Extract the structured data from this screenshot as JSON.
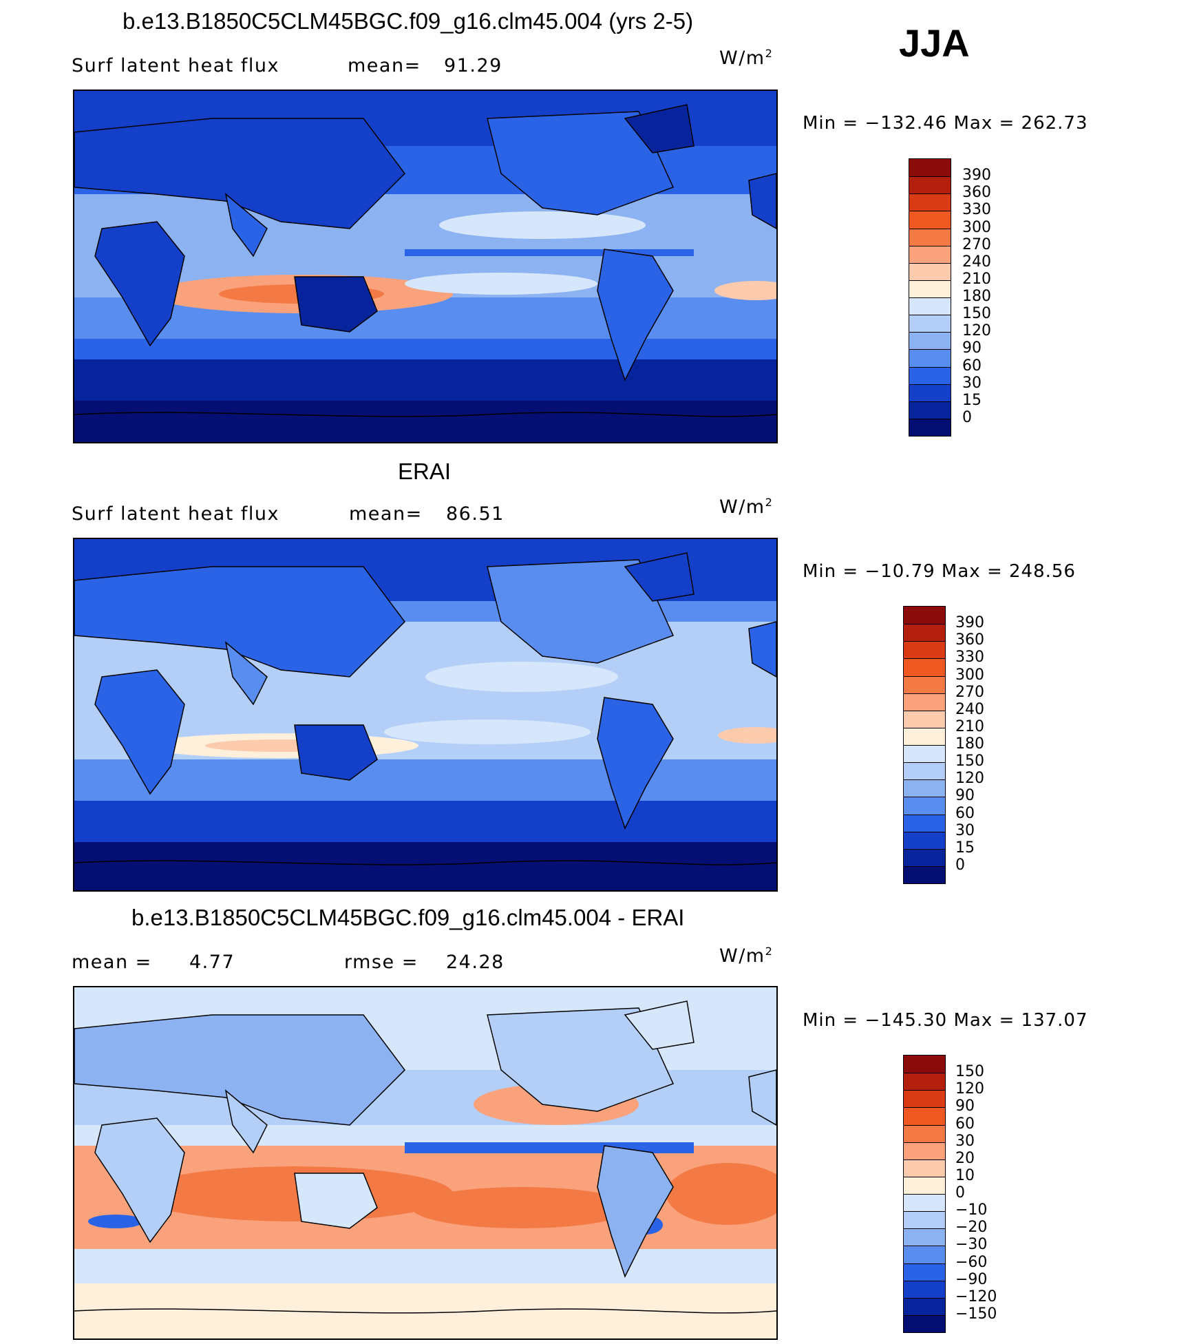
{
  "season": "JJA",
  "units_base": "W/m",
  "units_exp": "2",
  "panels": [
    {
      "id": "model",
      "title": "b.e13.B1850C5CLM45BGC.f09_g16.clm45.004 (yrs 2-5)",
      "left_label": "Surf latent heat flux",
      "stat_label": "mean=",
      "stat_value": "91.29",
      "minmax": "Min = −132.46 Max = 262.73",
      "colorbar": {
        "colors": [
          "#8b0b0b",
          "#b5200e",
          "#d93b14",
          "#f05a22",
          "#f47a45",
          "#f9a27c",
          "#fccbad",
          "#fff0dc",
          "#d6e7fb",
          "#b4cff7",
          "#8db2f1",
          "#5a8df0",
          "#2b63e6",
          "#1440c9",
          "#08249d",
          "#040e73"
        ],
        "labels": [
          "390",
          "360",
          "330",
          "300",
          "270",
          "240",
          "210",
          "180",
          "150",
          "120",
          "90",
          "60",
          "30",
          "15",
          "0"
        ]
      }
    },
    {
      "id": "obs",
      "title": "ERAI",
      "left_label": "Surf latent heat flux",
      "stat_label": "mean=",
      "stat_value": "86.51",
      "minmax": "Min = −10.79 Max = 248.56",
      "colorbar": {
        "colors": [
          "#8b0b0b",
          "#b5200e",
          "#d93b14",
          "#f05a22",
          "#f47a45",
          "#f9a27c",
          "#fccbad",
          "#fff0dc",
          "#d6e7fb",
          "#b4cff7",
          "#8db2f1",
          "#5a8df0",
          "#2b63e6",
          "#1440c9",
          "#08249d",
          "#040e73"
        ],
        "labels": [
          "390",
          "360",
          "330",
          "300",
          "270",
          "240",
          "210",
          "180",
          "150",
          "120",
          "90",
          "60",
          "30",
          "15",
          "0"
        ]
      }
    },
    {
      "id": "diff",
      "title": "b.e13.B1850C5CLM45BGC.f09_g16.clm45.004 - ERAI",
      "left_label": "mean =",
      "left_value": "4.77",
      "stat_label": "rmse =",
      "stat_value": "24.28",
      "minmax": "Min = −145.30 Max = 137.07",
      "colorbar": {
        "colors": [
          "#8b0b0b",
          "#b5200e",
          "#d93b14",
          "#f05a22",
          "#f47a45",
          "#f9a27c",
          "#fccbad",
          "#fff0dc",
          "#d6e7fb",
          "#b4cff7",
          "#8db2f1",
          "#5a8df0",
          "#2b63e6",
          "#1440c9",
          "#08249d",
          "#040e73"
        ],
        "labels": [
          "150",
          "120",
          "90",
          "60",
          "30",
          "20",
          "10",
          "0",
          "−10",
          "−20",
          "−30",
          "−60",
          "−90",
          "−120",
          "−150"
        ]
      }
    }
  ],
  "fill_colors": {
    "ocean_low": "#08249d",
    "ocean_mid": "#2b63e6",
    "ocean_high": "#8db2f1",
    "warm_band": "#fccbad",
    "hot_band": "#f9a27c",
    "land": "#1440c9",
    "diff_bg": "#d6e7fb",
    "diff_warm": "#f47a45",
    "diff_pale": "#fccbad",
    "diff_cool": "#8db2f1",
    "diff_cold": "#2b63e6"
  }
}
